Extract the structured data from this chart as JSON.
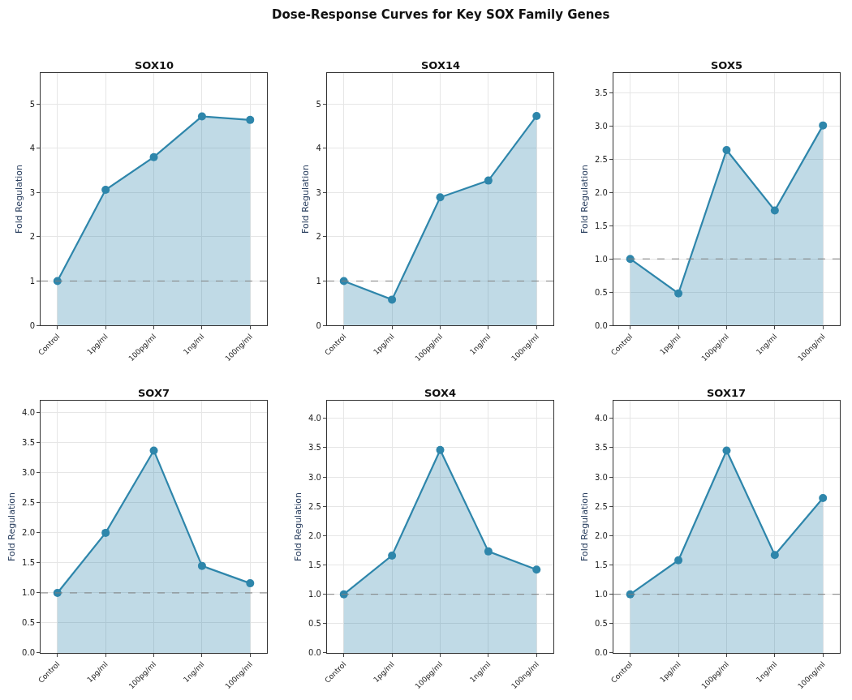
{
  "chart_data": [
    {
      "type": "area",
      "title": "SOX10",
      "ylabel": "Fold Regulation",
      "annotations": [
        "Dose-Response Curves for Key SOX Family Genes"
      ],
      "categories": [
        "Control",
        "1pg/ml",
        "100pg/ml",
        "1ng/ml",
        "100ng/ml"
      ],
      "series": [
        {
          "color": "#2e86ab",
          "values": [
            1.0,
            3.06,
            3.8,
            4.72,
            4.64
          ]
        }
      ],
      "ylim": [
        0,
        5.7
      ],
      "yticks": [
        0,
        1,
        2,
        3,
        4,
        5
      ],
      "grid": true,
      "marker": "circle",
      "line_style": "solid",
      "ref_lines": [
        {
          "axis": "y",
          "value": 1,
          "color": "#808080",
          "line_style": "dashed"
        }
      ]
    },
    {
      "type": "area",
      "title": "SOX14",
      "ylabel": "Fold Regulation",
      "categories": [
        "Control",
        "1pg/ml",
        "100pg/ml",
        "1ng/ml",
        "100ng/ml"
      ],
      "series": [
        {
          "color": "#2e86ab",
          "values": [
            1.0,
            0.58,
            2.89,
            3.27,
            4.73
          ]
        }
      ],
      "ylim": [
        0,
        5.7
      ],
      "yticks": [
        0,
        1,
        2,
        3,
        4,
        5
      ],
      "grid": true,
      "marker": "circle",
      "line_style": "solid",
      "ref_lines": [
        {
          "axis": "y",
          "value": 1,
          "color": "#808080",
          "line_style": "dashed"
        }
      ]
    },
    {
      "type": "area",
      "title": "SOX5",
      "ylabel": "Fold Regulation",
      "categories": [
        "Control",
        "1pg/ml",
        "100pg/ml",
        "1ng/ml",
        "100ng/ml"
      ],
      "series": [
        {
          "color": "#2e86ab",
          "values": [
            1.0,
            0.48,
            2.64,
            1.73,
            3.01
          ]
        }
      ],
      "ylim": [
        0,
        3.8
      ],
      "yticks": [
        {
          "value": 0,
          "label": "0.0"
        },
        0.5,
        {
          "value": 1,
          "label": "1.0"
        },
        1.5,
        {
          "value": 2,
          "label": "2.0"
        },
        2.5,
        {
          "value": 3,
          "label": "3.0"
        },
        3.5
      ],
      "grid": true,
      "marker": "circle",
      "line_style": "solid",
      "ref_lines": [
        {
          "axis": "y",
          "value": 1,
          "color": "#808080",
          "line_style": "dashed"
        }
      ]
    },
    {
      "type": "area",
      "title": "SOX7",
      "ylabel": "Fold Regulation",
      "categories": [
        "Control",
        "1pg/ml",
        "100pg/ml",
        "1ng/ml",
        "100ng/ml"
      ],
      "series": [
        {
          "color": "#2e86ab",
          "values": [
            1.0,
            2.0,
            3.37,
            1.45,
            1.16
          ]
        }
      ],
      "ylim": [
        0,
        4.2
      ],
      "yticks": [
        {
          "value": 0,
          "label": "0.0"
        },
        0.5,
        {
          "value": 1,
          "label": "1.0"
        },
        1.5,
        {
          "value": 2,
          "label": "2.0"
        },
        2.5,
        {
          "value": 3,
          "label": "3.0"
        },
        3.5,
        {
          "value": 4,
          "label": "4.0"
        }
      ],
      "grid": true,
      "marker": "circle",
      "line_style": "solid",
      "ref_lines": [
        {
          "axis": "y",
          "value": 1,
          "color": "#808080",
          "line_style": "dashed"
        }
      ]
    },
    {
      "type": "area",
      "title": "SOX4",
      "ylabel": "Fold Regulation",
      "categories": [
        "Control",
        "1pg/ml",
        "100pg/ml",
        "1ng/ml",
        "100ng/ml"
      ],
      "series": [
        {
          "color": "#2e86ab",
          "values": [
            1.0,
            1.66,
            3.46,
            1.73,
            1.42
          ]
        }
      ],
      "ylim": [
        0,
        4.3
      ],
      "yticks": [
        {
          "value": 0,
          "label": "0.0"
        },
        0.5,
        {
          "value": 1,
          "label": "1.0"
        },
        1.5,
        {
          "value": 2,
          "label": "2.0"
        },
        2.5,
        {
          "value": 3,
          "label": "3.0"
        },
        3.5,
        {
          "value": 4,
          "label": "4.0"
        }
      ],
      "grid": true,
      "marker": "circle",
      "line_style": "solid",
      "ref_lines": [
        {
          "axis": "y",
          "value": 1,
          "color": "#808080",
          "line_style": "dashed"
        }
      ]
    },
    {
      "type": "area",
      "title": "SOX17",
      "ylabel": "Fold Regulation",
      "categories": [
        "Control",
        "1pg/ml",
        "100pg/ml",
        "1ng/ml",
        "100ng/ml"
      ],
      "series": [
        {
          "color": "#2e86ab",
          "values": [
            1.0,
            1.58,
            3.45,
            1.67,
            2.64
          ]
        }
      ],
      "ylim": [
        0,
        4.3
      ],
      "yticks": [
        {
          "value": 0,
          "label": "0.0"
        },
        0.5,
        {
          "value": 1,
          "label": "1.0"
        },
        1.5,
        {
          "value": 2,
          "label": "2.0"
        },
        2.5,
        {
          "value": 3,
          "label": "3.0"
        },
        3.5,
        {
          "value": 4,
          "label": "4.0"
        }
      ],
      "grid": true,
      "marker": "circle",
      "line_style": "solid",
      "ref_lines": [
        {
          "axis": "y",
          "value": 1,
          "color": "#808080",
          "line_style": "dashed"
        }
      ]
    }
  ]
}
